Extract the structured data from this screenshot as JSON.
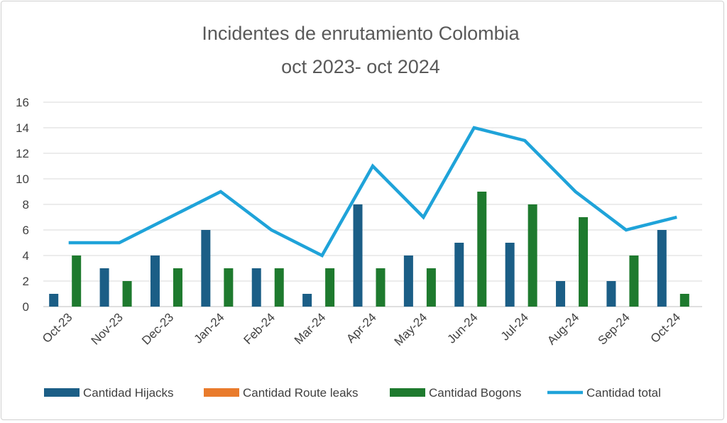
{
  "chart_data": {
    "type": "bar",
    "title_lines": [
      "Incidentes de enrutamiento Colombia",
      "oct 2023- oct 2024"
    ],
    "categories": [
      "Oct-23",
      "Nov-23",
      "Dec-23",
      "Jan-24",
      "Feb-24",
      "Mar-24",
      "Apr-24",
      "May-24",
      "Jun-24",
      "Jul-24",
      "Aug-24",
      "Sep-24",
      "Oct-24"
    ],
    "series": [
      {
        "name": "Cantidad Hijacks",
        "kind": "bar",
        "color": "#1b5e86",
        "values": [
          1,
          3,
          4,
          6,
          3,
          1,
          8,
          4,
          5,
          5,
          2,
          2,
          6
        ]
      },
      {
        "name": "Cantidad Route leaks",
        "kind": "bar",
        "color": "#e97b2c",
        "values": [
          0,
          0,
          0,
          0,
          0,
          0,
          0,
          0,
          0,
          0,
          0,
          0,
          0
        ]
      },
      {
        "name": "Cantidad Bogons",
        "kind": "bar",
        "color": "#1e7a2e",
        "values": [
          4,
          2,
          3,
          3,
          3,
          3,
          3,
          3,
          9,
          8,
          7,
          4,
          1
        ]
      },
      {
        "name": "Cantidad total",
        "kind": "line",
        "color": "#1fa3d9",
        "values": [
          5,
          5,
          7,
          9,
          6,
          4,
          11,
          7,
          14,
          13,
          9,
          6,
          7
        ]
      }
    ],
    "ylim": [
      0,
      16
    ],
    "yticks": [
      0,
      2,
      4,
      6,
      8,
      10,
      12,
      14,
      16
    ],
    "grid": true,
    "legend_position": "bottom"
  }
}
